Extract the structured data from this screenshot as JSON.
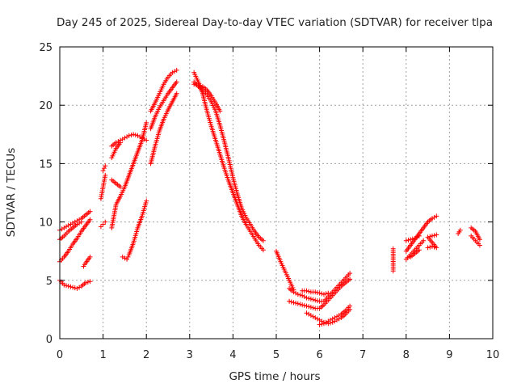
{
  "chart_data": {
    "type": "scatter",
    "title": "Day 245 of 2025, Sidereal Day-to-day VTEC variation (SDTVAR) for receiver tlpa",
    "xlabel": "GPS time / hours",
    "ylabel": "SDTVAR / TECUs",
    "xlim": [
      0,
      10
    ],
    "ylim": [
      0,
      25
    ],
    "xticks": [
      "0",
      "1",
      "2",
      "3",
      "4",
      "5",
      "6",
      "7",
      "8",
      "9",
      "10"
    ],
    "yticks": [
      "0",
      "5",
      "10",
      "15",
      "20",
      "25"
    ],
    "grid": true,
    "marker": "+",
    "colors": {
      "series": "#ff0000",
      "grid": "#a0a0a0",
      "axis": "#000000"
    },
    "series": [
      {
        "name": "s1",
        "x": [
          0.0,
          0.1,
          0.2,
          0.3,
          0.4,
          0.5,
          0.6,
          0.7
        ],
        "y": [
          9.3,
          9.5,
          9.7,
          9.9,
          10.1,
          10.3,
          10.6,
          10.9
        ]
      },
      {
        "name": "s2",
        "x": [
          0.0,
          0.1,
          0.2,
          0.3,
          0.4,
          0.5
        ],
        "y": [
          8.5,
          8.8,
          9.2,
          9.5,
          9.8,
          10.0
        ]
      },
      {
        "name": "s3",
        "x": [
          0.0,
          0.1,
          0.2,
          0.3,
          0.4,
          0.5,
          0.6,
          0.7
        ],
        "y": [
          6.6,
          7.0,
          7.5,
          8.1,
          8.6,
          9.2,
          9.7,
          10.2
        ]
      },
      {
        "name": "s4",
        "x": [
          0.0,
          0.1,
          0.2,
          0.3,
          0.4,
          0.5,
          0.6,
          0.7
        ],
        "y": [
          5.0,
          4.6,
          4.5,
          4.4,
          4.3,
          4.5,
          4.8,
          4.9
        ]
      },
      {
        "name": "s5",
        "x": [
          0.55,
          0.6,
          0.7
        ],
        "y": [
          6.2,
          6.5,
          7.0
        ]
      },
      {
        "name": "s6",
        "x": [
          0.95,
          1.0,
          1.05
        ],
        "y": [
          9.6,
          9.8,
          10.0
        ]
      },
      {
        "name": "s7",
        "x": [
          0.95,
          1.0,
          1.05
        ],
        "y": [
          12.0,
          13.0,
          14.0
        ]
      },
      {
        "name": "s8",
        "x": [
          1.0,
          1.05
        ],
        "y": [
          14.4,
          14.8
        ]
      },
      {
        "name": "s9",
        "x": [
          1.2,
          1.3,
          1.4,
          1.5,
          1.6,
          1.7,
          1.8,
          1.9,
          2.0
        ],
        "y": [
          9.5,
          11.5,
          12.2,
          13.0,
          14.0,
          15.0,
          16.0,
          17.0,
          18.5
        ]
      },
      {
        "name": "s10",
        "x": [
          1.2,
          1.3,
          1.4,
          1.5,
          1.6,
          1.7,
          1.8,
          1.9,
          2.0
        ],
        "y": [
          16.5,
          16.8,
          17.0,
          17.2,
          17.4,
          17.5,
          17.4,
          17.2,
          17.0
        ]
      },
      {
        "name": "s11",
        "x": [
          1.2,
          1.3,
          1.4
        ],
        "y": [
          13.6,
          13.3,
          13.0
        ]
      },
      {
        "name": "s12",
        "x": [
          1.2,
          1.3,
          1.4
        ],
        "y": [
          15.5,
          16.3,
          16.8
        ]
      },
      {
        "name": "s13",
        "x": [
          1.45,
          1.5,
          1.55,
          1.6,
          1.7,
          1.8,
          1.9,
          2.0
        ],
        "y": [
          7.0,
          6.9,
          6.8,
          7.2,
          8.2,
          9.5,
          10.5,
          11.8
        ]
      },
      {
        "name": "s14",
        "x": [
          2.1,
          2.2,
          2.3,
          2.4,
          2.5,
          2.6,
          2.7
        ],
        "y": [
          19.5,
          20.2,
          21.0,
          21.8,
          22.4,
          22.8,
          23.0
        ]
      },
      {
        "name": "s15",
        "x": [
          2.1,
          2.2,
          2.3,
          2.4,
          2.5,
          2.6,
          2.7
        ],
        "y": [
          18.0,
          19.0,
          19.8,
          20.4,
          21.0,
          21.5,
          22.0
        ]
      },
      {
        "name": "s16",
        "x": [
          2.1,
          2.2,
          2.3,
          2.4,
          2.5,
          2.6,
          2.7
        ],
        "y": [
          15.0,
          16.5,
          17.8,
          18.8,
          19.6,
          20.3,
          21.0
        ]
      },
      {
        "name": "s17",
        "x": [
          3.1,
          3.2,
          3.3,
          3.4,
          3.5,
          3.6,
          3.7,
          3.8,
          3.9,
          4.0,
          4.1,
          4.2,
          4.3,
          4.4,
          4.5,
          4.6,
          4.7
        ],
        "y": [
          22.8,
          22.0,
          21.0,
          19.5,
          18.2,
          17.0,
          15.8,
          14.6,
          13.5,
          12.5,
          11.5,
          10.5,
          9.8,
          9.2,
          8.6,
          8.0,
          7.6
        ]
      },
      {
        "name": "s18",
        "x": [
          3.1,
          3.2,
          3.3,
          3.4,
          3.5,
          3.6,
          3.7,
          3.8,
          3.9,
          4.0,
          4.1,
          4.2,
          4.3,
          4.4,
          4.5,
          4.6,
          4.7
        ],
        "y": [
          22.0,
          21.6,
          21.3,
          20.9,
          20.3,
          19.5,
          18.3,
          16.9,
          15.4,
          13.8,
          12.4,
          11.2,
          10.4,
          9.8,
          9.2,
          8.7,
          8.4
        ]
      },
      {
        "name": "s19",
        "x": [
          3.1,
          3.2,
          3.3,
          3.4,
          3.5,
          3.6,
          3.7
        ],
        "y": [
          21.8,
          21.7,
          21.6,
          21.3,
          20.8,
          20.2,
          19.5
        ]
      },
      {
        "name": "s20",
        "x": [
          5.0,
          5.1,
          5.2,
          5.3,
          5.4
        ],
        "y": [
          7.5,
          6.6,
          5.8,
          5.0,
          4.2
        ]
      },
      {
        "name": "s21",
        "x": [
          5.3,
          5.4,
          5.5,
          5.6,
          5.7,
          5.8,
          5.9,
          6.0,
          6.1,
          6.2,
          6.3,
          6.4,
          6.5,
          6.6,
          6.7
        ],
        "y": [
          4.3,
          4.0,
          3.8,
          3.7,
          3.5,
          3.4,
          3.3,
          3.2,
          3.2,
          3.6,
          4.0,
          4.4,
          4.8,
          5.2,
          5.6
        ]
      },
      {
        "name": "s22",
        "x": [
          5.3,
          5.4,
          5.5,
          5.6,
          5.7,
          5.8,
          5.9,
          6.0,
          6.1,
          6.2,
          6.3,
          6.4,
          6.5,
          6.6,
          6.7
        ],
        "y": [
          3.2,
          3.1,
          3.0,
          2.9,
          2.8,
          2.7,
          2.6,
          2.6,
          2.9,
          3.3,
          3.7,
          4.1,
          4.5,
          4.8,
          5.1
        ]
      },
      {
        "name": "s23",
        "x": [
          5.6,
          5.7,
          5.8,
          5.9,
          6.0,
          6.1,
          6.2
        ],
        "y": [
          4.1,
          4.1,
          4.0,
          4.0,
          3.9,
          3.8,
          3.9
        ]
      },
      {
        "name": "s24",
        "x": [
          5.7,
          5.8,
          5.9,
          6.0,
          6.1,
          6.2,
          6.3,
          6.4,
          6.5,
          6.6,
          6.7
        ],
        "y": [
          2.2,
          2.0,
          1.8,
          1.6,
          1.4,
          1.3,
          1.4,
          1.6,
          1.8,
          2.1,
          2.5
        ]
      },
      {
        "name": "s25",
        "x": [
          6.0,
          6.1,
          6.2,
          6.3,
          6.4,
          6.5,
          6.6,
          6.7
        ],
        "y": [
          1.2,
          1.3,
          1.5,
          1.7,
          1.9,
          2.1,
          2.4,
          2.8
        ]
      },
      {
        "name": "s26",
        "x": [
          7.7,
          7.7,
          7.7
        ],
        "y": [
          7.7,
          6.3,
          5.8
        ]
      },
      {
        "name": "s27",
        "x": [
          8.0,
          8.1,
          8.2,
          8.3,
          8.4,
          8.5,
          8.6,
          8.7
        ],
        "y": [
          7.5,
          8.0,
          8.5,
          9.0,
          9.5,
          10.0,
          10.3,
          10.5
        ]
      },
      {
        "name": "s28",
        "x": [
          8.0,
          8.1,
          8.2,
          8.3,
          8.4
        ],
        "y": [
          6.8,
          7.2,
          7.6,
          8.0,
          8.4
        ]
      },
      {
        "name": "s29",
        "x": [
          8.0,
          8.1,
          8.2,
          8.3
        ],
        "y": [
          8.4,
          8.5,
          8.6,
          8.8
        ]
      },
      {
        "name": "s30",
        "x": [
          8.1,
          8.2,
          8.3
        ],
        "y": [
          7.0,
          7.3,
          7.6
        ]
      },
      {
        "name": "s31",
        "x": [
          8.5,
          8.6,
          8.7,
          8.5,
          8.6,
          8.7
        ],
        "y": [
          7.8,
          7.9,
          7.8,
          8.7,
          8.8,
          8.9
        ]
      },
      {
        "name": "s32",
        "x": [
          9.2,
          9.25
        ],
        "y": [
          9.0,
          9.3
        ]
      },
      {
        "name": "s33",
        "x": [
          9.5,
          9.6,
          9.7
        ],
        "y": [
          9.5,
          9.2,
          8.5
        ]
      },
      {
        "name": "s34",
        "x": [
          9.5,
          9.6,
          9.7
        ],
        "y": [
          8.8,
          8.4,
          8.0
        ]
      }
    ]
  }
}
